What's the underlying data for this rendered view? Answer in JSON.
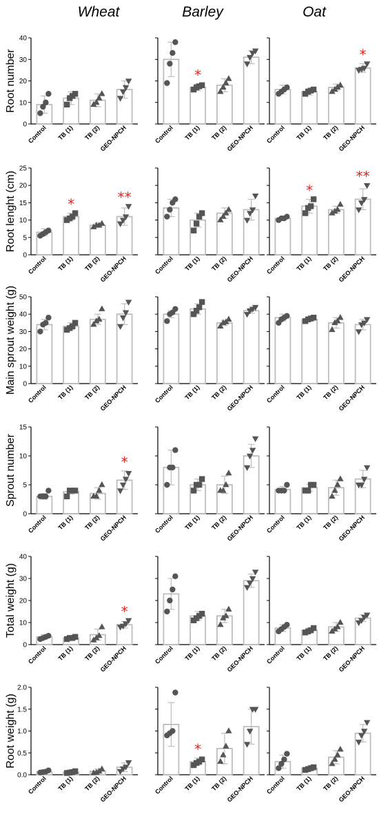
{
  "columns": [
    "Wheat",
    "Barley",
    "Oat"
  ],
  "categories": [
    "Control",
    "TB (1)",
    "TB (2)",
    "GEO-NPCH"
  ],
  "colors": {
    "bar": "#bdbdbd",
    "point": "#555555",
    "star": "#e8231f",
    "axis": "#000000"
  },
  "markers": {
    "Control": "circle",
    "TB (1)": "square",
    "TB (2)": "triangle-up",
    "GEO-NPCH": "triangle-down"
  },
  "chart_data": [
    {
      "type": "bar",
      "ylabel": "Root number",
      "ylim": [
        0,
        40
      ],
      "yticks": [
        "0",
        "10",
        "20",
        "30",
        "40"
      ],
      "panels": [
        {
          "crop": "Wheat",
          "means": [
            9,
            12,
            11,
            16
          ],
          "sd": [
            4,
            3,
            3,
            4
          ],
          "points": [
            [
              5,
              8,
              10,
              14
            ],
            [
              9,
              12,
              13,
              14
            ],
            [
              9,
              10,
              12,
              14
            ],
            [
              12,
              15,
              17,
              20
            ]
          ],
          "stars": [
            "",
            "",
            "",
            ""
          ]
        },
        {
          "crop": "Barley",
          "means": [
            30,
            17,
            18,
            31
          ],
          "sd": [
            8,
            1.5,
            3,
            3
          ],
          "points": [
            [
              19,
              28,
              33,
              38
            ],
            [
              16,
              17,
              17.5,
              18
            ],
            [
              15,
              17,
              19,
              21
            ],
            [
              28,
              31,
              33,
              34
            ]
          ],
          "stars": [
            "",
            "*",
            "",
            ""
          ]
        },
        {
          "crop": "Oat",
          "means": [
            16,
            15,
            17,
            26
          ],
          "sd": [
            2,
            1.5,
            1.5,
            2
          ],
          "points": [
            [
              14,
              15,
              16,
              17
            ],
            [
              14,
              15,
              15.5,
              16
            ],
            [
              15,
              16,
              17,
              18
            ],
            [
              25,
              25.5,
              26,
              28
            ]
          ],
          "stars": [
            "",
            "",
            "",
            "*"
          ]
        }
      ]
    },
    {
      "type": "bar",
      "ylabel": "Root lenght (cm)",
      "ylim": [
        0,
        25
      ],
      "yticks": [
        "0",
        "5",
        "10",
        "15",
        "20",
        "25"
      ],
      "panels": [
        {
          "crop": "Wheat",
          "means": [
            6.5,
            11,
            8.5,
            11
          ],
          "sd": [
            1,
            1,
            0.6,
            2.5
          ],
          "points": [
            [
              5.5,
              6,
              6.5,
              7
            ],
            [
              10,
              10.5,
              11,
              12
            ],
            [
              8,
              8.5,
              8.5,
              9
            ],
            [
              9,
              10,
              11,
              14
            ]
          ],
          "stars": [
            "",
            "*",
            "",
            "**"
          ]
        },
        {
          "crop": "Barley",
          "means": [
            13.5,
            10,
            12,
            13
          ],
          "sd": [
            2.5,
            2,
            1.5,
            3
          ],
          "points": [
            [
              11,
              13,
              15,
              16
            ],
            [
              7,
              9,
              11,
              12
            ],
            [
              10,
              11,
              12,
              13
            ],
            [
              10,
              12,
              13,
              17
            ]
          ],
          "stars": [
            "",
            "",
            "",
            ""
          ]
        },
        {
          "crop": "Oat",
          "means": [
            10.5,
            14,
            13,
            16
          ],
          "sd": [
            0.4,
            2,
            1,
            3
          ],
          "points": [
            [
              10,
              10.5,
              10.5,
              11
            ],
            [
              12,
              13.5,
              14,
              16
            ],
            [
              12,
              12.5,
              13,
              14.5
            ],
            [
              13,
              15,
              16,
              20
            ]
          ],
          "stars": [
            "",
            "*",
            "",
            "**"
          ]
        }
      ]
    },
    {
      "type": "bar",
      "ylabel": "Main sprout weight (g)",
      "ylim": [
        0,
        50
      ],
      "yticks": [
        "0",
        "10",
        "20",
        "30",
        "40",
        "50"
      ],
      "panels": [
        {
          "crop": "Wheat",
          "means": [
            34,
            33,
            37,
            40
          ],
          "sd": [
            3,
            2,
            3,
            6
          ],
          "points": [
            [
              30,
              34,
              35,
              38
            ],
            [
              31,
              32,
              33,
              35
            ],
            [
              34,
              36,
              37,
              43
            ],
            [
              33,
              38,
              41,
              47
            ]
          ],
          "stars": [
            "",
            "",
            "",
            ""
          ]
        },
        {
          "crop": "Barley",
          "means": [
            40,
            43,
            35,
            42
          ],
          "sd": [
            2,
            3,
            1.5,
            1.5
          ],
          "points": [
            [
              36,
              40,
              41,
              43
            ],
            [
              40,
              42,
              44,
              47
            ],
            [
              33,
              35,
              35.5,
              37
            ],
            [
              40,
              42,
              43,
              44
            ]
          ],
          "stars": [
            "",
            "",
            "",
            ""
          ]
        },
        {
          "crop": "Oat",
          "means": [
            38,
            37,
            35,
            34
          ],
          "sd": [
            2,
            1,
            3,
            3
          ],
          "points": [
            [
              35,
              37,
              38,
              39
            ],
            [
              36,
              37,
              37.5,
              38
            ],
            [
              31,
              35,
              36,
              38
            ],
            [
              30,
              34,
              35,
              37
            ]
          ],
          "stars": [
            "",
            "",
            "",
            ""
          ]
        }
      ]
    },
    {
      "type": "bar",
      "ylabel": "Sprout number",
      "ylim": [
        0,
        15
      ],
      "yticks": [
        "0",
        "5",
        "10",
        "15"
      ],
      "panels": [
        {
          "crop": "Wheat",
          "means": [
            3,
            3.8,
            3.5,
            5.8
          ],
          "sd": [
            0.5,
            0.4,
            1,
            1.6
          ],
          "points": [
            [
              3,
              3,
              3,
              4
            ],
            [
              3,
              4,
              4,
              4
            ],
            [
              3,
              3,
              4,
              5
            ],
            [
              4,
              5,
              6,
              7
            ]
          ],
          "stars": [
            "",
            "",
            "",
            "*"
          ]
        },
        {
          "crop": "Barley",
          "means": [
            8,
            5,
            5,
            10
          ],
          "sd": [
            3,
            1,
            1.5,
            2
          ],
          "points": [
            [
              5,
              8,
              8,
              11
            ],
            [
              4,
              5,
              5,
              6
            ],
            [
              4,
              4,
              5,
              7
            ],
            [
              8,
              10,
              11,
              13
            ]
          ],
          "stars": [
            "",
            "",
            "",
            ""
          ]
        },
        {
          "crop": "Oat",
          "means": [
            4.2,
            4.5,
            4.5,
            6
          ],
          "sd": [
            0.5,
            0.6,
            1.3,
            1.5
          ],
          "points": [
            [
              4,
              4,
              4,
              5
            ],
            [
              4,
              4,
              5,
              5
            ],
            [
              3,
              4,
              5,
              6
            ],
            [
              5,
              5,
              6,
              8
            ]
          ],
          "stars": [
            "",
            "",
            "",
            ""
          ]
        }
      ]
    },
    {
      "type": "bar",
      "ylabel": "Total weight (g)",
      "ylim": [
        0,
        40
      ],
      "yticks": [
        "0",
        "10",
        "20",
        "30",
        "40"
      ],
      "panels": [
        {
          "crop": "Wheat",
          "means": [
            3.5,
            3,
            4.5,
            9
          ],
          "sd": [
            1,
            0.5,
            2.5,
            1.5
          ],
          "points": [
            [
              2.5,
              3,
              3.5,
              4
            ],
            [
              2.5,
              3,
              3,
              3.5
            ],
            [
              2,
              3,
              4,
              8
            ],
            [
              8,
              8.5,
              9.5,
              11
            ]
          ],
          "stars": [
            "",
            "",
            "",
            "*"
          ]
        },
        {
          "crop": "Barley",
          "means": [
            23,
            13,
            13,
            29
          ],
          "sd": [
            7,
            2,
            3,
            3
          ],
          "points": [
            [
              15,
              20,
              25,
              31
            ],
            [
              11,
              12,
              13,
              14
            ],
            [
              9,
              12,
              13,
              16
            ],
            [
              26,
              28,
              30,
              33
            ]
          ],
          "stars": [
            "",
            "",
            "",
            ""
          ]
        },
        {
          "crop": "Oat",
          "means": [
            7.5,
            6.5,
            8,
            12
          ],
          "sd": [
            1.5,
            1,
            2,
            1.5
          ],
          "points": [
            [
              6,
              7,
              8,
              9
            ],
            [
              5.5,
              6,
              6.5,
              7.5
            ],
            [
              6,
              7,
              8,
              10
            ],
            [
              10,
              11,
              12.5,
              13.5
            ]
          ],
          "stars": [
            "",
            "",
            "",
            ""
          ]
        }
      ]
    },
    {
      "type": "bar",
      "ylabel": "Root weight (g)",
      "ylim": [
        0,
        2.0
      ],
      "yticks": [
        "0.0",
        "0.5",
        "1.0",
        "1.5",
        "2.0"
      ],
      "panels": [
        {
          "crop": "Wheat",
          "means": [
            0.07,
            0.06,
            0.08,
            0.17
          ],
          "sd": [
            0.02,
            0.02,
            0.05,
            0.1
          ],
          "points": [
            [
              0.05,
              0.06,
              0.07,
              0.1
            ],
            [
              0.04,
              0.05,
              0.06,
              0.08
            ],
            [
              0.04,
              0.05,
              0.08,
              0.13
            ],
            [
              0.08,
              0.14,
              0.18,
              0.28
            ]
          ],
          "stars": [
            "",
            "",
            "",
            ""
          ]
        },
        {
          "crop": "Barley",
          "means": [
            1.15,
            0.3,
            0.6,
            1.1
          ],
          "sd": [
            0.5,
            0.08,
            0.35,
            0.4
          ],
          "points": [
            [
              0.9,
              0.95,
              1.0,
              1.88
            ],
            [
              0.22,
              0.27,
              0.3,
              0.35
            ],
            [
              0.3,
              0.45,
              0.65,
              1.0
            ],
            [
              0.7,
              1.0,
              1.5,
              1.5
            ]
          ],
          "stars": [
            "",
            "*",
            "",
            ""
          ]
        },
        {
          "crop": "Oat",
          "means": [
            0.3,
            0.15,
            0.4,
            0.95
          ],
          "sd": [
            0.15,
            0.03,
            0.15,
            0.2
          ],
          "points": [
            [
              0.15,
              0.25,
              0.35,
              0.48
            ],
            [
              0.11,
              0.13,
              0.15,
              0.17
            ],
            [
              0.25,
              0.35,
              0.45,
              0.58
            ],
            [
              0.75,
              0.9,
              1.0,
              1.2
            ]
          ],
          "stars": [
            "",
            "",
            "",
            ""
          ]
        }
      ]
    }
  ]
}
